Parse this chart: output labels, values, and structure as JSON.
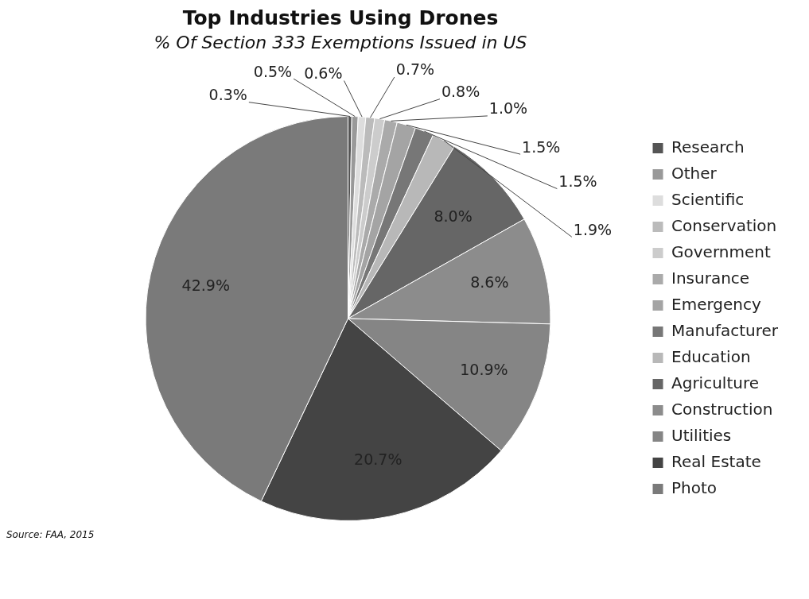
{
  "chart_data": {
    "type": "pie",
    "title": "Top Industries Using Drones",
    "subtitle": "% Of Section 333 Exemptions Issued in US",
    "categories": [
      "Research",
      "Other",
      "Scientific",
      "Conservation",
      "Government",
      "Insurance",
      "Emergency",
      "Manufacturer",
      "Education",
      "Agriculture",
      "Construction",
      "Utilities",
      "Real Estate",
      "Photo"
    ],
    "values": [
      0.3,
      0.5,
      0.6,
      0.7,
      0.8,
      1.0,
      1.5,
      1.5,
      1.9,
      8.0,
      8.6,
      10.9,
      20.7,
      42.9
    ],
    "value_labels": [
      "0.3%",
      "0.5%",
      "0.6%",
      "0.7%",
      "0.8%",
      "1.0%",
      "1.5%",
      "1.5%",
      "1.9%",
      "8.0%",
      "8.6%",
      "10.9%",
      "20.7%",
      "42.9%"
    ],
    "colors": [
      "#555555",
      "#999999",
      "#dddddd",
      "#bbbbbb",
      "#cccccc",
      "#aaaaaa",
      "#a4a4a4",
      "#777777",
      "#b8b8b8",
      "#666666",
      "#8c8c8c",
      "#858585",
      "#444444",
      "#7a7a7a"
    ],
    "legend": "right",
    "annotations": [
      "Source: FAA, 2015"
    ]
  }
}
